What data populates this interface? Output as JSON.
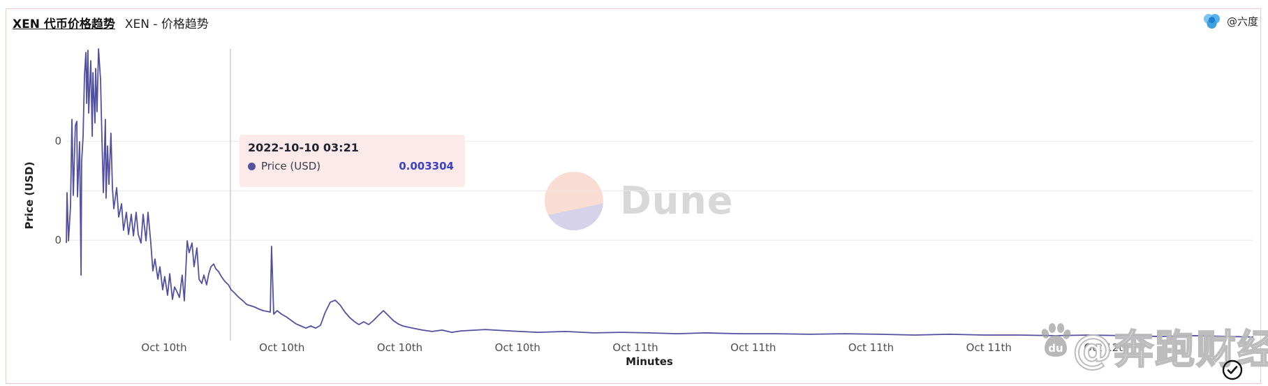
{
  "header": {
    "dashboard_link": "XEN 代币价格趋势",
    "chart_title": "XEN - 价格趋势",
    "owner": "@六度"
  },
  "watermarks": {
    "dune_word": "Dune",
    "baidu_du": "du",
    "finance_watermark": "@奔跑财经"
  },
  "tooltip": {
    "datetime": "2022-10-10 03:21",
    "series_label": "Price (USD)",
    "value": "0.003304"
  },
  "colors": {
    "line": "#514fa0",
    "tooltip_bg": "#fce9e9",
    "tooltip_value": "#3a41c6",
    "grid": "#e7e7e7",
    "crosshair": "#c9c9c9",
    "card_border": "#f3c9c9",
    "dune_gray": "#d8d8d8"
  },
  "chart_data": {
    "type": "line",
    "title": "XEN - 价格趋势",
    "xlabel": "Minutes",
    "ylabel": "Price (USD)",
    "legend_position": "none",
    "grid": "horizontal-only",
    "ylim": [
      0,
      0.016
    ],
    "y_gridline_prices": [
      0.01,
      0.0075,
      0.005
    ],
    "y_tick_labels": [
      {
        "label": "0",
        "price": 0.01
      },
      {
        "label": "0",
        "price": 0.005
      }
    ],
    "x_ticks": [
      "Oct 10th",
      "Oct 10th",
      "Oct 10th",
      "Oct 10th",
      "Oct 11th",
      "Oct 11th",
      "Oct 11th",
      "Oct 11th",
      "Oct 12th"
    ],
    "crosshair": {
      "x_frac": 0.1382,
      "datetime": "2022-10-10 03:21",
      "price_usd": 0.003304
    },
    "series": [
      {
        "name": "Price (USD)",
        "points": [
          [
            0,
            0.00486
          ],
          [
            0.0006,
            0.0074
          ],
          [
            0.0018,
            0.00497
          ],
          [
            0.0035,
            0.00673
          ],
          [
            0.0047,
            0.0111
          ],
          [
            0.0059,
            0.00726
          ],
          [
            0.0076,
            0.01078
          ],
          [
            0.0088,
            0.011
          ],
          [
            0.0094,
            0.00719
          ],
          [
            0.0112,
            0.00997
          ],
          [
            0.0124,
            0.00324
          ],
          [
            0.0129,
            0.00895
          ],
          [
            0.0141,
            0.01025
          ],
          [
            0.0153,
            0.01332
          ],
          [
            0.0165,
            0.01448
          ],
          [
            0.0171,
            0.01191
          ],
          [
            0.0182,
            0.01459
          ],
          [
            0.0188,
            0.01142
          ],
          [
            0.0206,
            0.01406
          ],
          [
            0.0218,
            0.01025
          ],
          [
            0.0224,
            0.01346
          ],
          [
            0.0241,
            0.01092
          ],
          [
            0.0247,
            0.01367
          ],
          [
            0.0259,
            0.01149
          ],
          [
            0.0271,
            0.01466
          ],
          [
            0.0288,
            0.01311
          ],
          [
            0.03,
            0.01011
          ],
          [
            0.0312,
            0.0074
          ],
          [
            0.0329,
            0.0111
          ],
          [
            0.0335,
            0.00712
          ],
          [
            0.0347,
            0.00976
          ],
          [
            0.0359,
            0.00782
          ],
          [
            0.0376,
            0.0104
          ],
          [
            0.0388,
            0.00765
          ],
          [
            0.04,
            0.00659
          ],
          [
            0.0424,
            0.00765
          ],
          [
            0.0441,
            0.00617
          ],
          [
            0.0465,
            0.00684
          ],
          [
            0.0482,
            0.0055
          ],
          [
            0.0506,
            0.00641
          ],
          [
            0.0524,
            0.00529
          ],
          [
            0.0547,
            0.00631
          ],
          [
            0.0565,
            0.00522
          ],
          [
            0.0588,
            0.00641
          ],
          [
            0.0606,
            0.00529
          ],
          [
            0.0629,
            0.00486
          ],
          [
            0.0647,
            0.00631
          ],
          [
            0.0671,
            0.00497
          ],
          [
            0.0688,
            0.00641
          ],
          [
            0.0712,
            0.00486
          ],
          [
            0.0729,
            0.00345
          ],
          [
            0.0747,
            0.00405
          ],
          [
            0.0771,
            0.00303
          ],
          [
            0.0788,
            0.00366
          ],
          [
            0.0812,
            0.0025
          ],
          [
            0.0829,
            0.00317
          ],
          [
            0.0853,
            0.00222
          ],
          [
            0.0871,
            0.00331
          ],
          [
            0.0894,
            0.00201
          ],
          [
            0.0912,
            0.00264
          ],
          [
            0.0935,
            0.00236
          ],
          [
            0.0953,
            0.00211
          ],
          [
            0.0976,
            0.00324
          ],
          [
            0.0994,
            0.00194
          ],
          [
            0.1018,
            0.00497
          ],
          [
            0.1035,
            0.00437
          ],
          [
            0.1059,
            0.00486
          ],
          [
            0.1076,
            0.00366
          ],
          [
            0.11,
            0.00461
          ],
          [
            0.1118,
            0.00303
          ],
          [
            0.1141,
            0.00282
          ],
          [
            0.1159,
            0.00324
          ],
          [
            0.1182,
            0.00275
          ],
          [
            0.12,
            0.00331
          ],
          [
            0.1218,
            0.00366
          ],
          [
            0.1241,
            0.0038
          ],
          [
            0.1259,
            0.00356
          ],
          [
            0.1282,
            0.00342
          ],
          [
            0.1306,
            0.00317
          ],
          [
            0.1335,
            0.00292
          ],
          [
            0.1365,
            0.00275
          ],
          [
            0.1388,
            0.0025
          ],
          [
            0.1418,
            0.00233
          ],
          [
            0.1453,
            0.00211
          ],
          [
            0.1488,
            0.00194
          ],
          [
            0.1518,
            0.00176
          ],
          [
            0.1553,
            0.00169
          ],
          [
            0.1588,
            0.00162
          ],
          [
            0.1624,
            0.00152
          ],
          [
            0.1659,
            0.00144
          ],
          [
            0.1688,
            0.00141
          ],
          [
            0.1718,
            0.00137
          ],
          [
            0.1729,
            0.00469
          ],
          [
            0.1747,
            0.00127
          ],
          [
            0.1776,
            0.00144
          ],
          [
            0.1812,
            0.00127
          ],
          [
            0.1853,
            0.00113
          ],
          [
            0.1894,
            0.00095
          ],
          [
            0.1935,
            0.00078
          ],
          [
            0.1976,
            0.00067
          ],
          [
            0.2018,
            0.00056
          ],
          [
            0.2059,
            0.00067
          ],
          [
            0.21,
            0.00056
          ],
          [
            0.2141,
            0.0007
          ],
          [
            0.2182,
            0.00137
          ],
          [
            0.2224,
            0.00187
          ],
          [
            0.2265,
            0.00197
          ],
          [
            0.2306,
            0.00173
          ],
          [
            0.2347,
            0.00137
          ],
          [
            0.2388,
            0.00109
          ],
          [
            0.2429,
            0.00088
          ],
          [
            0.2465,
            0.00074
          ],
          [
            0.2506,
            0.00088
          ],
          [
            0.2547,
            0.00074
          ],
          [
            0.2588,
            0.00095
          ],
          [
            0.2629,
            0.0012
          ],
          [
            0.2671,
            0.00144
          ],
          [
            0.2712,
            0.0012
          ],
          [
            0.2753,
            0.00095
          ],
          [
            0.2794,
            0.00078
          ],
          [
            0.2835,
            0.00067
          ],
          [
            0.2918,
            0.00056
          ],
          [
            0.3,
            0.00046
          ],
          [
            0.3082,
            0.00039
          ],
          [
            0.3165,
            0.00046
          ],
          [
            0.3247,
            0.00035
          ],
          [
            0.3324,
            0.00042
          ],
          [
            0.3529,
            0.00049
          ],
          [
            0.3735,
            0.00042
          ],
          [
            0.3971,
            0.00035
          ],
          [
            0.4206,
            0.00039
          ],
          [
            0.4441,
            0.00032
          ],
          [
            0.4676,
            0.00035
          ],
          [
            0.4912,
            0.00032
          ],
          [
            0.5147,
            0.00028
          ],
          [
            0.5382,
            0.00032
          ],
          [
            0.5676,
            0.00028
          ],
          [
            0.5971,
            0.00028
          ],
          [
            0.6265,
            0.00025
          ],
          [
            0.6559,
            0.00028
          ],
          [
            0.6853,
            0.00025
          ],
          [
            0.7147,
            0.00021
          ],
          [
            0.7441,
            0.00025
          ],
          [
            0.7735,
            0.00021
          ],
          [
            0.8029,
            0.00021
          ],
          [
            0.8324,
            0.00018
          ],
          [
            0.8618,
            0.00021
          ],
          [
            0.8912,
            0.00018
          ],
          [
            0.9206,
            0.00014
          ],
          [
            0.95,
            0.00018
          ],
          [
            0.9794,
            0.00014
          ],
          [
            1,
            0.00011
          ]
        ]
      }
    ]
  }
}
